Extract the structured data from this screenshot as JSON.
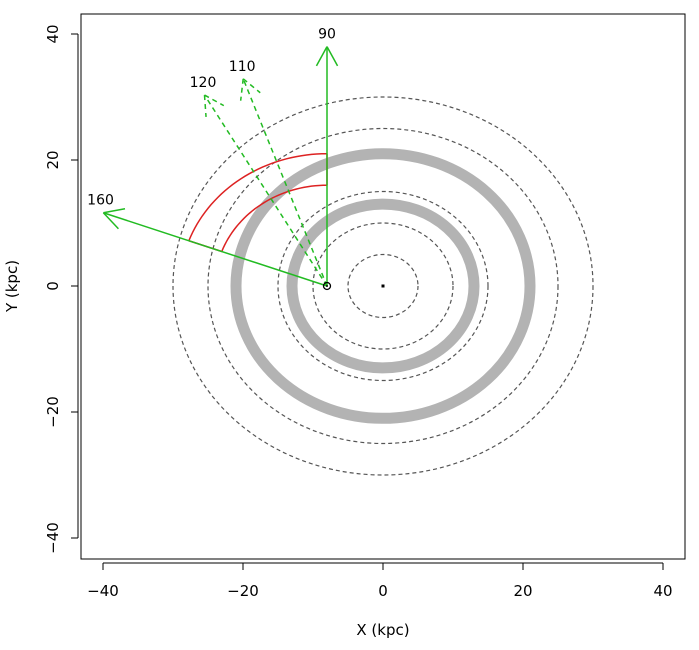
{
  "chart_data": {
    "type": "scatter",
    "xlabel": "X (kpc)",
    "ylabel": "Y (kpc)",
    "xlim": [
      -43,
      43
    ],
    "ylim": [
      -43,
      43
    ],
    "xticks": [
      -40,
      -20,
      0,
      20,
      40
    ],
    "yticks": [
      -40,
      -20,
      0,
      20,
      40
    ],
    "xtick_labels": [
      "−40",
      "−20",
      "0",
      "20",
      "40"
    ],
    "ytick_labels": [
      "−40",
      "−20",
      "0",
      "20",
      "40"
    ],
    "grid": false,
    "center_marker": [
      0,
      0
    ],
    "sun": [
      -8,
      0
    ],
    "dashed_circles": {
      "radii": [
        5,
        10,
        15,
        25,
        30
      ],
      "color": "#555555"
    },
    "gray_rings": {
      "radii": [
        13,
        21
      ],
      "color": "#b3b3b3"
    },
    "sight_lines": [
      {
        "label": "90",
        "angle": 90,
        "length": 38,
        "style": "solid",
        "color": "#22bb22"
      },
      {
        "label": "110",
        "angle": 110,
        "length": 35,
        "style": "dashed",
        "color": "#22bb22"
      },
      {
        "label": "120",
        "angle": 120,
        "length": 35,
        "style": "dashed",
        "color": "#22bb22"
      },
      {
        "label": "160",
        "angle": 160,
        "length": 34,
        "style": "solid",
        "color": "#22bb22"
      }
    ],
    "red_arcs": {
      "color": "#dd2222",
      "radii": [
        16,
        21
      ],
      "start_angle": 90,
      "end_angle": 160
    }
  }
}
